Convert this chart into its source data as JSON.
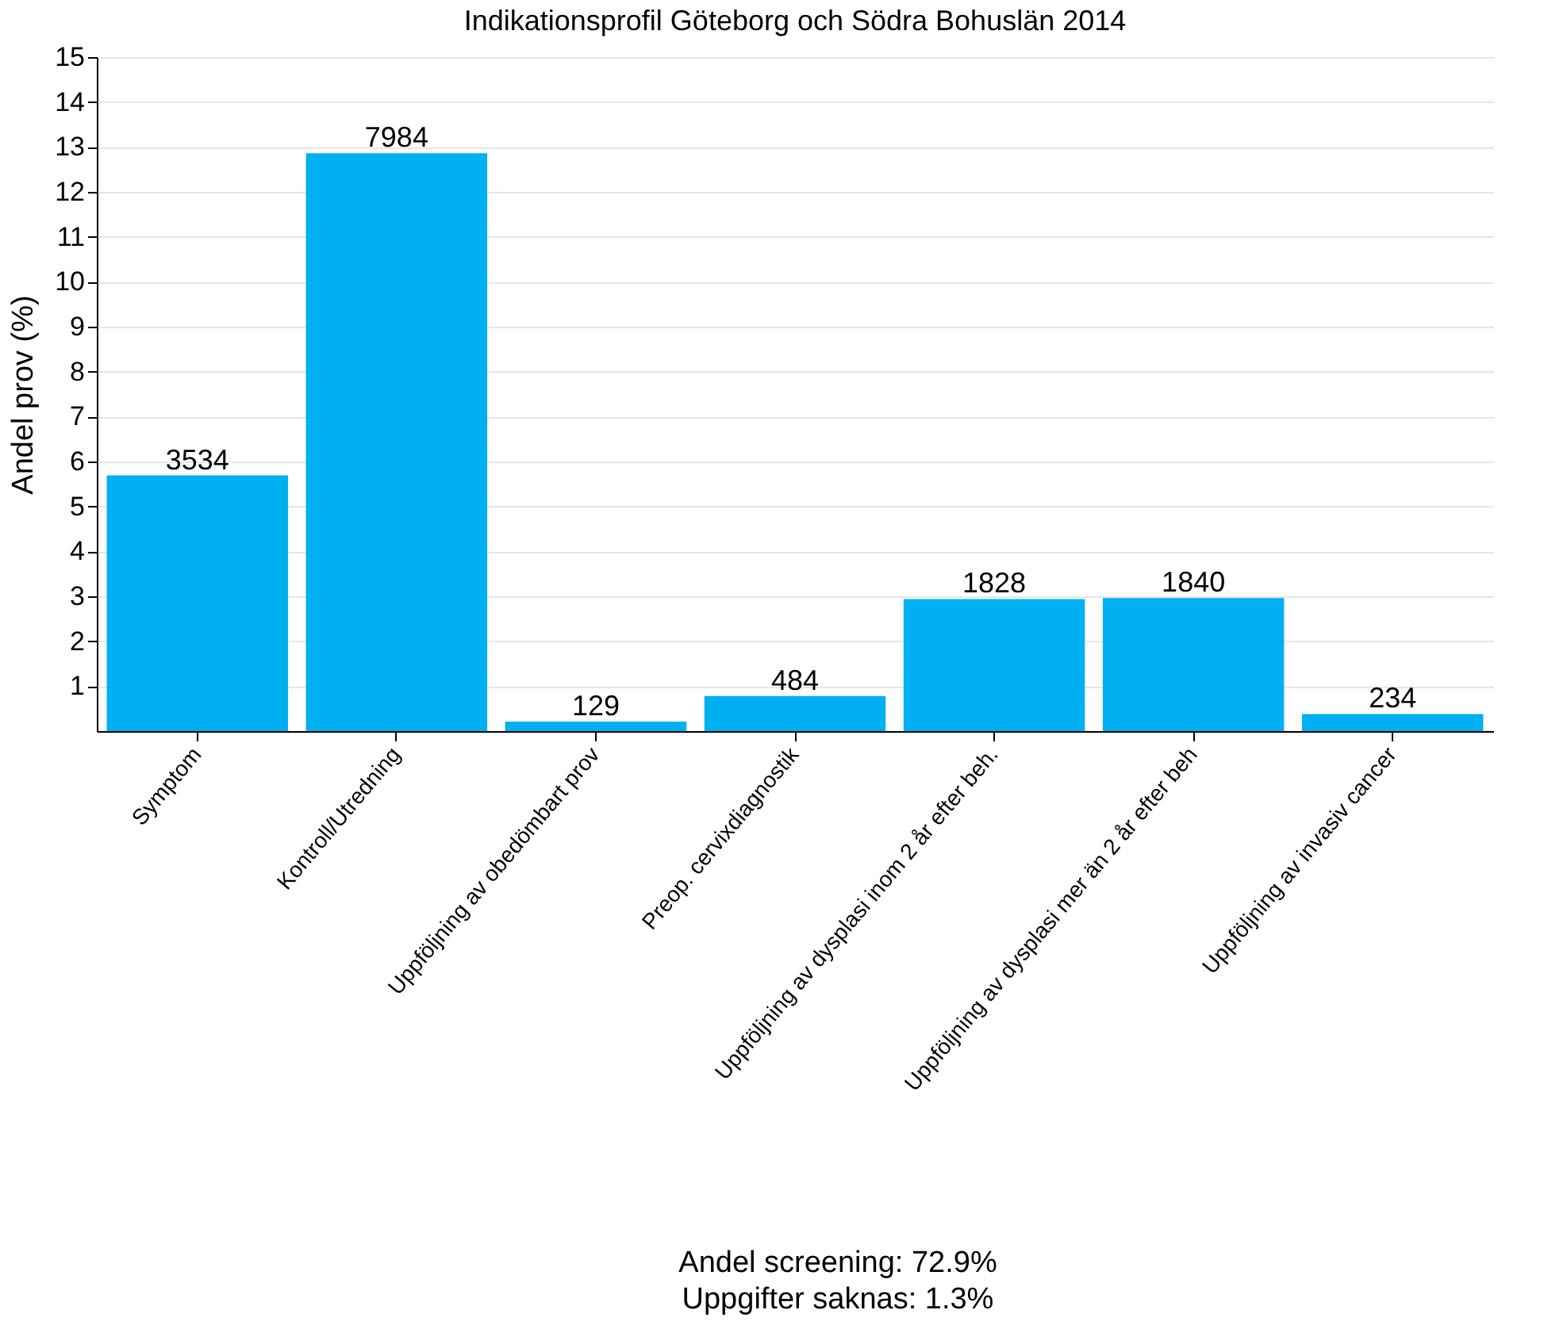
{
  "chart_data": {
    "type": "bar",
    "title": "Indikationsprofil Göteborg och Södra Bohuslän 2014",
    "ylabel": "Andel prov (%)",
    "categories": [
      "Symptom",
      "Kontroll/Utredning",
      "Uppföljning av obedömbart prov",
      "Preop. cervixdiagnostik",
      "Uppföljning av dysplasi inom 2 år efter beh.",
      "Uppföljning av dysplasi mer än 2 år efter beh",
      "Uppföljning av invasiv cancer"
    ],
    "values": [
      5.69,
      12.86,
      0.21,
      0.78,
      2.94,
      2.96,
      0.38
    ],
    "color": "#00b0f0",
    "ylim": [
      0,
      15
    ],
    "yticks": [
      1,
      2,
      3,
      4,
      5,
      6,
      7,
      8,
      9,
      10,
      11,
      12,
      13,
      14,
      15
    ],
    "grid": "y",
    "annotations": [
      {
        "text": "3534",
        "x": "Symptom",
        "y": 5.69
      },
      {
        "text": "7984",
        "x": "Kontroll/Utredning",
        "y": 12.86
      },
      {
        "text": "129",
        "x": "Uppföljning av obedömbart prov",
        "y": 0.21
      },
      {
        "text": "484",
        "x": "Preop. cervixdiagnostik",
        "y": 0.78
      },
      {
        "text": "1828",
        "x": "Uppföljning av dysplasi inom 2 år efter beh.",
        "y": 2.94
      },
      {
        "text": "1840",
        "x": "Uppföljning av dysplasi mer än 2 år efter beh",
        "y": 2.96
      },
      {
        "text": "234",
        "x": "Uppföljning av invasiv cancer",
        "y": 0.38
      },
      "Andel screening: 72.9%",
      "Uppgifter saknas: 1.3%"
    ]
  }
}
